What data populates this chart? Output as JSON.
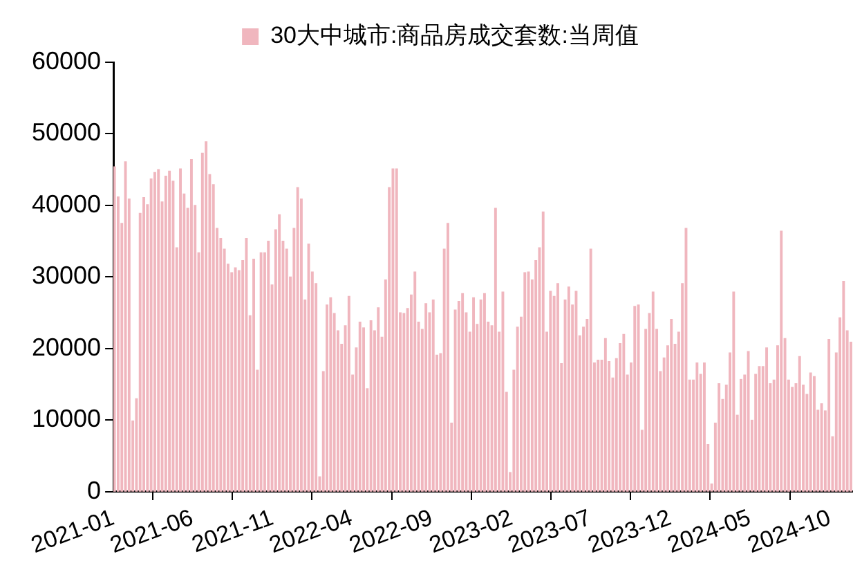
{
  "chart_data": {
    "type": "bar",
    "legend": "top",
    "grid": false,
    "x": [
      "2021-01-03",
      "2021-01-10",
      "2021-01-17",
      "2021-01-24",
      "2021-01-31",
      "2021-02-07",
      "2021-02-14",
      "2021-02-21",
      "2021-02-28",
      "2021-03-07",
      "2021-03-14",
      "2021-03-21",
      "2021-03-28",
      "2021-04-04",
      "2021-04-11",
      "2021-04-18",
      "2021-04-25",
      "2021-05-02",
      "2021-05-09",
      "2021-05-16",
      "2021-05-23",
      "2021-05-30",
      "2021-06-06",
      "2021-06-13",
      "2021-06-20",
      "2021-06-27",
      "2021-07-04",
      "2021-07-11",
      "2021-07-18",
      "2021-07-25",
      "2021-08-01",
      "2021-08-08",
      "2021-08-15",
      "2021-08-22",
      "2021-08-29",
      "2021-09-05",
      "2021-09-12",
      "2021-09-19",
      "2021-09-26",
      "2021-10-03",
      "2021-10-10",
      "2021-10-17",
      "2021-10-24",
      "2021-10-31",
      "2021-11-07",
      "2021-11-14",
      "2021-11-21",
      "2021-11-28",
      "2021-12-05",
      "2021-12-12",
      "2021-12-19",
      "2021-12-26",
      "2022-01-02",
      "2022-01-09",
      "2022-01-16",
      "2022-01-23",
      "2022-01-30",
      "2022-02-06",
      "2022-02-13",
      "2022-02-20",
      "2022-02-27",
      "2022-03-06",
      "2022-03-13",
      "2022-03-20",
      "2022-03-27",
      "2022-04-03",
      "2022-04-10",
      "2022-04-17",
      "2022-04-24",
      "2022-05-01",
      "2022-05-08",
      "2022-05-15",
      "2022-05-22",
      "2022-05-29",
      "2022-06-05",
      "2022-06-12",
      "2022-06-19",
      "2022-06-26",
      "2022-07-03",
      "2022-07-10",
      "2022-07-17",
      "2022-07-24",
      "2022-07-31",
      "2022-08-07",
      "2022-08-14",
      "2022-08-21",
      "2022-08-28",
      "2022-09-04",
      "2022-09-11",
      "2022-09-18",
      "2022-09-25",
      "2022-10-02",
      "2022-10-09",
      "2022-10-16",
      "2022-10-23",
      "2022-10-30",
      "2022-11-06",
      "2022-11-13",
      "2022-11-20",
      "2022-11-27",
      "2022-12-04",
      "2022-12-11",
      "2022-12-18",
      "2022-12-25",
      "2023-01-01",
      "2023-01-08",
      "2023-01-15",
      "2023-01-22",
      "2023-01-29",
      "2023-02-05",
      "2023-02-12",
      "2023-02-19",
      "2023-02-26",
      "2023-03-05",
      "2023-03-12",
      "2023-03-19",
      "2023-03-26",
      "2023-04-02",
      "2023-04-09",
      "2023-04-16",
      "2023-04-23",
      "2023-04-30",
      "2023-05-07",
      "2023-05-14",
      "2023-05-21",
      "2023-05-28",
      "2023-06-04",
      "2023-06-11",
      "2023-06-18",
      "2023-06-25",
      "2023-07-02",
      "2023-07-09",
      "2023-07-16",
      "2023-07-23",
      "2023-07-30",
      "2023-08-06",
      "2023-08-13",
      "2023-08-20",
      "2023-08-27",
      "2023-09-03",
      "2023-09-10",
      "2023-09-17",
      "2023-09-24",
      "2023-10-01",
      "2023-10-08",
      "2023-10-15",
      "2023-10-22",
      "2023-10-29",
      "2023-11-05",
      "2023-11-12",
      "2023-11-19",
      "2023-11-26",
      "2023-12-03",
      "2023-12-10",
      "2023-12-17",
      "2023-12-24",
      "2023-12-31",
      "2024-01-07",
      "2024-01-14",
      "2024-01-21",
      "2024-01-28",
      "2024-02-04",
      "2024-02-11",
      "2024-02-18",
      "2024-02-25",
      "2024-03-03",
      "2024-03-10",
      "2024-03-17",
      "2024-03-24",
      "2024-03-31",
      "2024-04-07",
      "2024-04-14",
      "2024-04-21",
      "2024-04-28",
      "2024-05-05",
      "2024-05-12",
      "2024-05-19",
      "2024-05-26",
      "2024-06-02",
      "2024-06-09",
      "2024-06-16",
      "2024-06-23",
      "2024-06-30",
      "2024-07-07",
      "2024-07-14",
      "2024-07-21",
      "2024-07-28",
      "2024-08-04",
      "2024-08-11",
      "2024-08-18",
      "2024-08-25",
      "2024-09-01",
      "2024-09-08",
      "2024-09-15",
      "2024-09-22",
      "2024-09-29",
      "2024-10-06",
      "2024-10-13",
      "2024-10-20",
      "2024-10-27",
      "2024-11-03",
      "2024-11-10"
    ],
    "series": [
      {
        "name": "30大中城市:商品房成交套数:当周值",
        "color": "#f0b6be",
        "values": [
          45400,
          41200,
          37500,
          46100,
          40900,
          9900,
          13000,
          38900,
          41100,
          40100,
          43700,
          44600,
          45000,
          40500,
          44100,
          44800,
          43400,
          34100,
          45100,
          41600,
          39600,
          46400,
          40000,
          33400,
          47300,
          48900,
          44300,
          42900,
          36800,
          35400,
          33900,
          31800,
          30600,
          31300,
          30900,
          32300,
          35400,
          24600,
          32500,
          17000,
          33400,
          33400,
          35000,
          28900,
          36600,
          38700,
          35000,
          33900,
          30000,
          36800,
          42500,
          40900,
          26800,
          34600,
          30700,
          29100,
          2100,
          16800,
          26100,
          27100,
          24900,
          22500,
          20600,
          23200,
          27300,
          16300,
          20100,
          23700,
          22900,
          14400,
          23900,
          22500,
          25700,
          21600,
          29600,
          42500,
          45100,
          45100,
          25000,
          24900,
          25600,
          27500,
          30700,
          23700,
          22700,
          26300,
          25000,
          26800,
          19100,
          19300,
          33900,
          37500,
          9600,
          25400,
          26600,
          27700,
          25000,
          22300,
          27100,
          23400,
          26800,
          27700,
          23700,
          23200,
          39600,
          22300,
          27900,
          13900,
          2700,
          17000,
          23000,
          24400,
          30600,
          30700,
          29600,
          32300,
          34100,
          39100,
          22300,
          28000,
          27300,
          29100,
          17900,
          26800,
          28600,
          26100,
          28000,
          21800,
          23000,
          24100,
          33900,
          18000,
          18400,
          18400,
          21400,
          18200,
          15900,
          18600,
          20700,
          22000,
          16300,
          18000,
          25900,
          26100,
          8600,
          22700,
          24900,
          27900,
          22700,
          16800,
          18700,
          20400,
          24100,
          20600,
          22300,
          29100,
          36800,
          15600,
          15600,
          18000,
          16400,
          18000,
          6600,
          1100,
          9600,
          15100,
          12900,
          14900,
          19400,
          27900,
          10700,
          15700,
          16300,
          19600,
          10000,
          16400,
          17500,
          17500,
          20100,
          15100,
          15600,
          20400,
          36400,
          21400,
          15600,
          14600,
          15100,
          18900,
          14900,
          13600,
          16600,
          16100,
          11400,
          12300,
          11300,
          21300,
          7700,
          19400,
          24300,
          29400,
          22500,
          20900
        ]
      }
    ],
    "xlim": [
      "2021-01-01",
      "2024-11-14"
    ],
    "xticks": [
      "2021-01",
      "2021-06",
      "2021-11",
      "2022-04",
      "2022-09",
      "2023-02",
      "2023-07",
      "2023-12",
      "2024-05",
      "2024-10"
    ],
    "ylim": [
      0,
      60000
    ],
    "yticks": [
      0,
      10000,
      20000,
      30000,
      40000,
      50000,
      60000
    ]
  }
}
